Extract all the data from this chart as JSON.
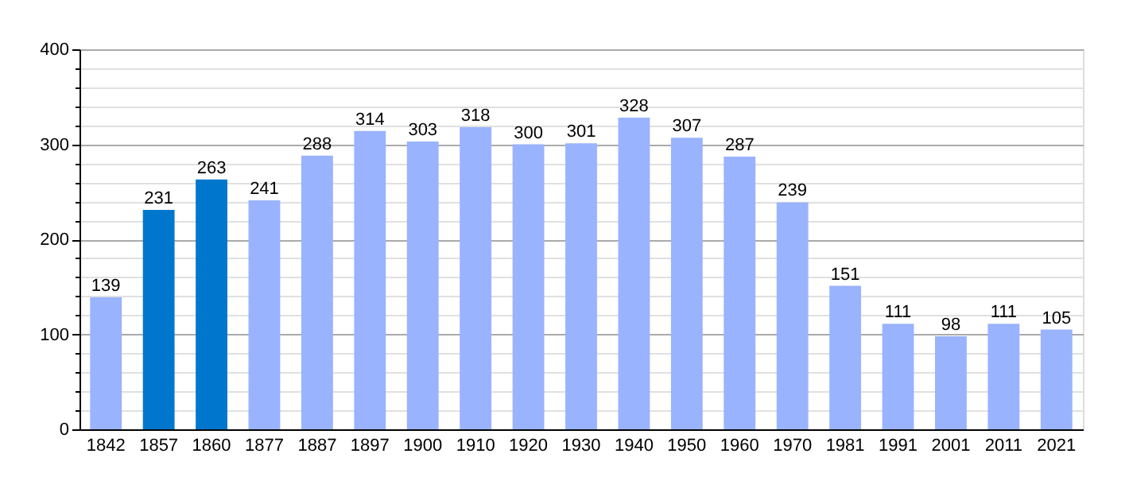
{
  "chart_data": {
    "type": "bar",
    "categories": [
      "1842",
      "1857",
      "1860",
      "1877",
      "1887",
      "1897",
      "1900",
      "1910",
      "1920",
      "1930",
      "1940",
      "1950",
      "1960",
      "1970",
      "1981",
      "1991",
      "2001",
      "2011",
      "2021"
    ],
    "values": [
      139,
      231,
      263,
      241,
      288,
      314,
      303,
      318,
      300,
      301,
      328,
      307,
      287,
      239,
      151,
      111,
      98,
      111,
      105
    ],
    "colors": [
      "#99b3ff",
      "#0077cc",
      "#0077cc",
      "#99b3ff",
      "#99b3ff",
      "#99b3ff",
      "#99b3ff",
      "#99b3ff",
      "#99b3ff",
      "#99b3ff",
      "#99b3ff",
      "#99b3ff",
      "#99b3ff",
      "#99b3ff",
      "#99b3ff",
      "#99b3ff",
      "#99b3ff",
      "#99b3ff",
      "#99b3ff"
    ],
    "ylim": [
      0,
      400
    ],
    "yticks": [
      0,
      {
        "value": 20,
        "label": null
      },
      {
        "value": 40,
        "label": null
      },
      {
        "value": 60,
        "label": null
      },
      {
        "value": 80,
        "label": null
      },
      100,
      {
        "value": 120,
        "label": null
      },
      {
        "value": 140,
        "label": null
      },
      {
        "value": 160,
        "label": null
      },
      {
        "value": 180,
        "label": null
      },
      200,
      {
        "value": 220,
        "label": null
      },
      {
        "value": 240,
        "label": null
      },
      {
        "value": 260,
        "label": null
      },
      {
        "value": 280,
        "label": null
      },
      300,
      {
        "value": 320,
        "label": null
      },
      {
        "value": 340,
        "label": null
      },
      {
        "value": 360,
        "label": null
      },
      {
        "value": 380,
        "label": null
      },
      400
    ],
    "grid": true,
    "data_labels": true
  }
}
